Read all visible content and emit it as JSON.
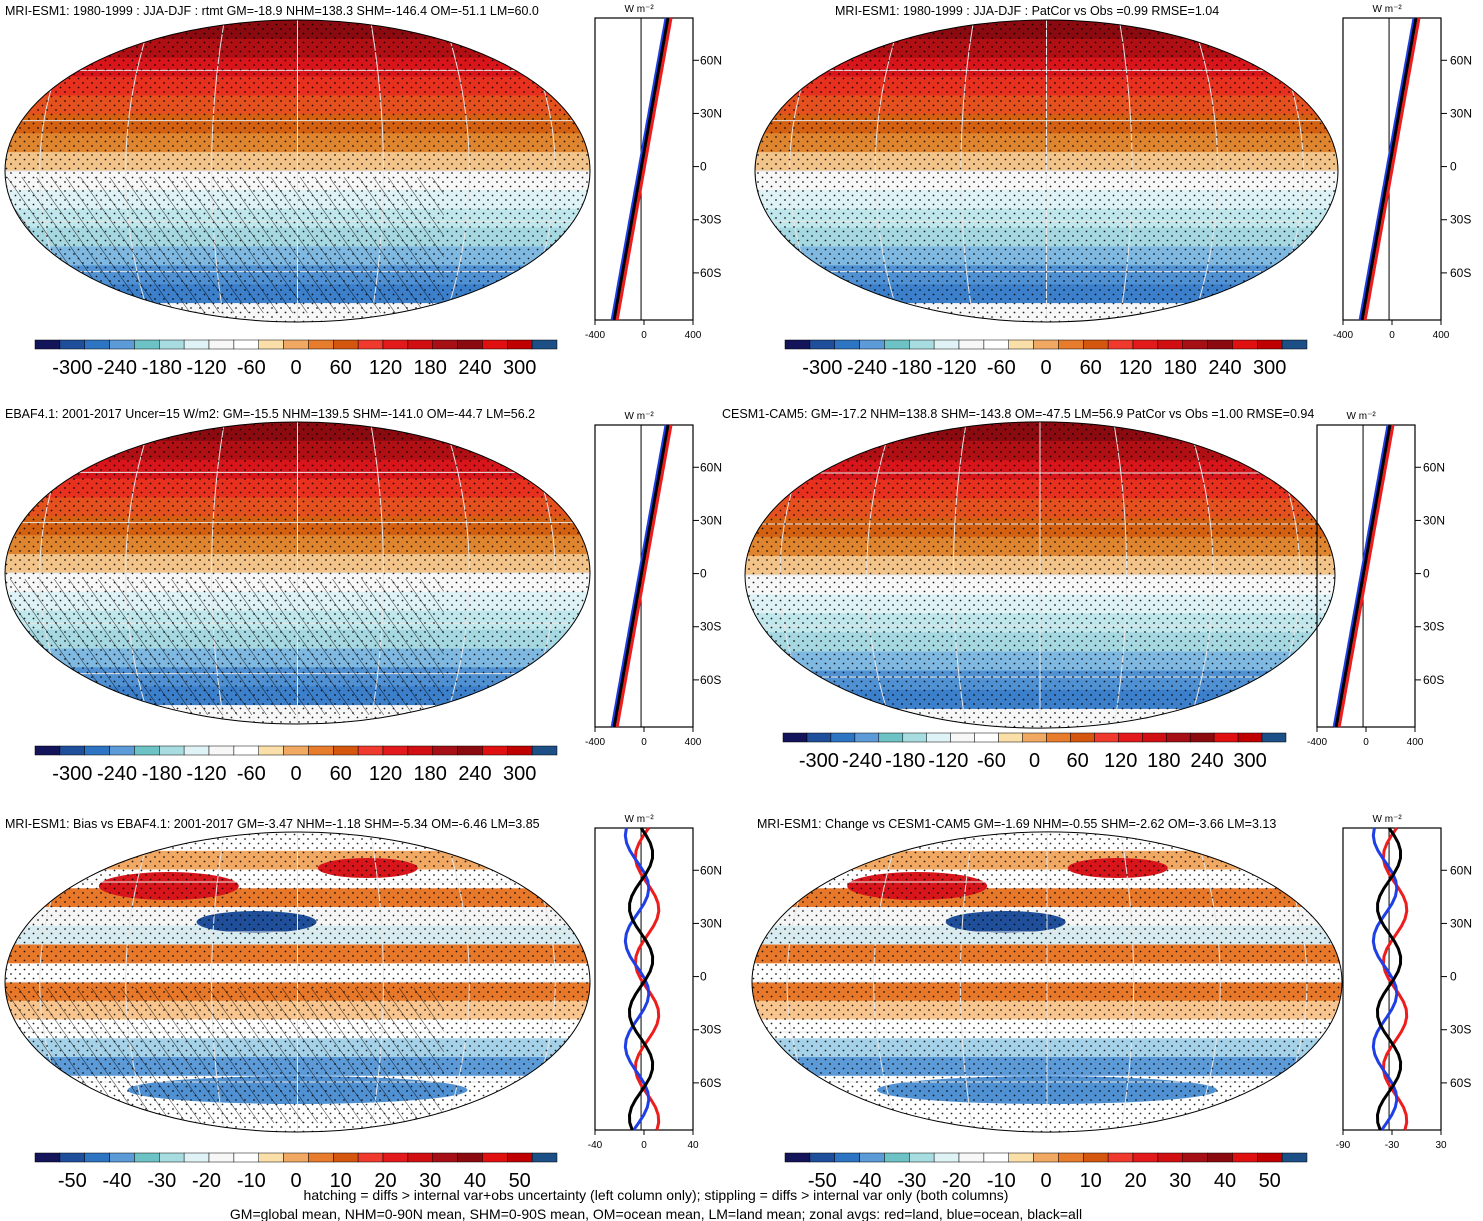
{
  "colors": {
    "diverging_palette": [
      "#14145a",
      "#1f4f9a",
      "#2d74c2",
      "#5d9bd8",
      "#6cc2c4",
      "#a7dde0",
      "#dff3f6",
      "#f7f7f7",
      "#ffffff",
      "#fbdfa9",
      "#f0a862",
      "#e77c2d",
      "#d5560e",
      "#ef3a2d",
      "#e31a1c",
      "#d10f12",
      "#a50f15",
      "#8a0a10",
      "#e01010",
      "#c00000",
      "#1b4f86"
    ],
    "land_line": "#ef1c1c",
    "ocean_line": "#1f3fe6",
    "all_line": "#000000"
  },
  "panels": [
    {
      "title": "MRI-ESM1: 1980-1999 : JJA-DJF : rtmt GM=-18.9 NHM=138.3 SHM=-146.4 OM=-51.1 LM=60.0",
      "kind": "field",
      "hatched": true,
      "unit": "W m⁻²",
      "colorbar_labels": [
        "-300",
        "-240",
        "-180",
        "-120",
        "-60",
        "0",
        "60",
        "120",
        "180",
        "240",
        "300"
      ],
      "xticks": [
        "-400",
        "0",
        "400"
      ],
      "lat_labels": [
        "60N",
        "30N",
        "0",
        "30S",
        "60S"
      ]
    },
    {
      "title": "MRI-ESM1: 1980-1999 : JJA-DJF : PatCor vs Obs =0.99 RMSE=1.04",
      "kind": "field",
      "hatched": false,
      "unit": "W m⁻²",
      "colorbar_labels": [
        "-300",
        "-240",
        "-180",
        "-120",
        "-60",
        "0",
        "60",
        "120",
        "180",
        "240",
        "300"
      ],
      "xticks": [
        "-400",
        "0",
        "400"
      ],
      "lat_labels": [
        "60N",
        "30N",
        "0",
        "30S",
        "60S"
      ]
    },
    {
      "title": "EBAF4.1: 2001-2017 Uncer=15 W/m2: GM=-15.5 NHM=139.5 SHM=-141.0 OM=-44.7 LM=56.2",
      "kind": "field",
      "hatched": true,
      "unit": "W m⁻²",
      "colorbar_labels": [
        "-300",
        "-240",
        "-180",
        "-120",
        "-60",
        "0",
        "60",
        "120",
        "180",
        "240",
        "300"
      ],
      "xticks": [
        "-400",
        "0",
        "400"
      ],
      "lat_labels": [
        "60N",
        "30N",
        "0",
        "30S",
        "60S"
      ]
    },
    {
      "title": "CESM1-CAM5: GM=-17.2 NHM=138.8 SHM=-143.8 OM=-47.5 LM=56.9 PatCor vs Obs =1.00 RMSE=0.94",
      "kind": "field",
      "hatched": false,
      "unit": "W m⁻²",
      "colorbar_labels": [
        "-300",
        "-240",
        "-180",
        "-120",
        "-60",
        "0",
        "60",
        "120",
        "180",
        "240",
        "300"
      ],
      "xticks": [
        "-400",
        "0",
        "400"
      ],
      "lat_labels": [
        "60N",
        "30N",
        "0",
        "30S",
        "60S"
      ]
    },
    {
      "title": "MRI-ESM1: Bias vs EBAF4.1: 2001-2017 GM=-3.47 NHM=-1.18 SHM=-5.34 OM=-6.46 LM=3.85",
      "kind": "diff",
      "hatched": true,
      "unit": "W m⁻²",
      "colorbar_labels": [
        "-50",
        "-40",
        "-30",
        "-20",
        "-10",
        "0",
        "10",
        "20",
        "30",
        "40",
        "50"
      ],
      "xticks": [
        "-40",
        "0",
        "40"
      ],
      "lat_labels": [
        "60N",
        "30N",
        "0",
        "30S",
        "60S"
      ]
    },
    {
      "title": "MRI-ESM1: Change vs CESM1-CAM5 GM=-1.69 NHM=-0.55 SHM=-2.62 OM=-3.66 LM=3.13",
      "kind": "diff",
      "hatched": false,
      "unit": "W m⁻²",
      "colorbar_labels": [
        "-50",
        "-40",
        "-30",
        "-20",
        "-10",
        "0",
        "10",
        "20",
        "30",
        "40",
        "50"
      ],
      "xticks": [
        "-90",
        "-30",
        "30"
      ],
      "lat_labels": [
        "60N",
        "30N",
        "0",
        "30S",
        "60S"
      ]
    }
  ],
  "footer": {
    "line1": "hatching = diffs > internal var+obs uncertainty (left column only); stippling = diffs > internal var only (both columns)",
    "line2": "GM=global mean, NHM=0-90N mean, SHM=0-90S mean, OM=ocean mean, LM=land mean; zonal avgs: red=land, blue=ocean, black=all"
  }
}
